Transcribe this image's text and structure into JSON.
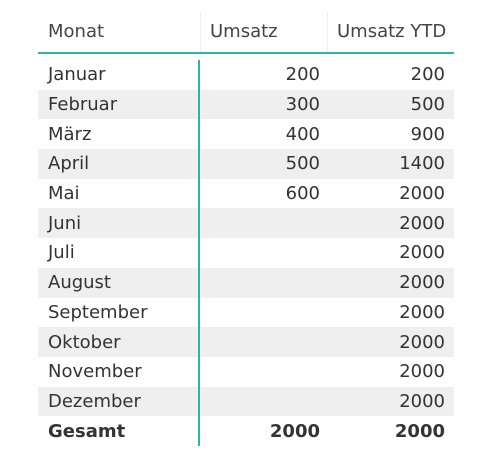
{
  "table": {
    "columns": [
      "Monat",
      "Umsatz",
      "Umsatz YTD"
    ],
    "rows": [
      {
        "month": "Januar",
        "umsatz": "200",
        "ytd": "200"
      },
      {
        "month": "Februar",
        "umsatz": "300",
        "ytd": "500"
      },
      {
        "month": "März",
        "umsatz": "400",
        "ytd": "900"
      },
      {
        "month": "April",
        "umsatz": "500",
        "ytd": "1400"
      },
      {
        "month": "Mai",
        "umsatz": "600",
        "ytd": "2000"
      },
      {
        "month": "Juni",
        "umsatz": "",
        "ytd": "2000"
      },
      {
        "month": "Juli",
        "umsatz": "",
        "ytd": "2000"
      },
      {
        "month": "August",
        "umsatz": "",
        "ytd": "2000"
      },
      {
        "month": "September",
        "umsatz": "",
        "ytd": "2000"
      },
      {
        "month": "Oktober",
        "umsatz": "",
        "ytd": "2000"
      },
      {
        "month": "November",
        "umsatz": "",
        "ytd": "2000"
      },
      {
        "month": "Dezember",
        "umsatz": "",
        "ytd": "2000"
      }
    ],
    "total": {
      "month": "Gesamt",
      "umsatz": "2000",
      "ytd": "2000"
    }
  },
  "colors": {
    "accent": "#2bb7a8",
    "row_alt": "#efefef",
    "text": "#333333"
  }
}
